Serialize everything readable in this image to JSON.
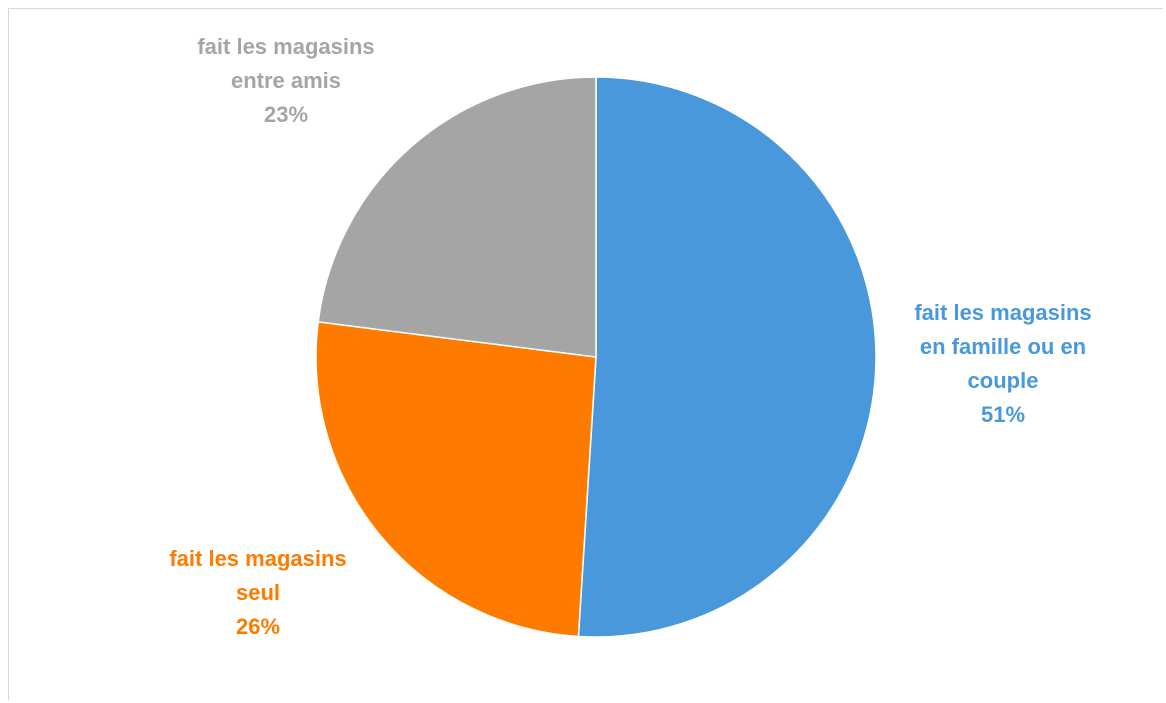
{
  "chart_data": {
    "type": "pie",
    "title": "",
    "slices": [
      {
        "label_lines": [
          "fait les magasins",
          "en famille ou en",
          "couple"
        ],
        "value": 51,
        "percent_label": "51%",
        "color": "#4a98dc"
      },
      {
        "label_lines": [
          "fait les magasins",
          "seul"
        ],
        "value": 26,
        "percent_label": "26%",
        "color": "#ff7b00"
      },
      {
        "label_lines": [
          "fait les magasins",
          "entre amis"
        ],
        "value": 23,
        "percent_label": "23%",
        "color": "#a5a5a5"
      }
    ],
    "start": "12 o'clock",
    "direction": "clockwise",
    "legend": "none",
    "data_labels": "outside, colored by slice"
  }
}
